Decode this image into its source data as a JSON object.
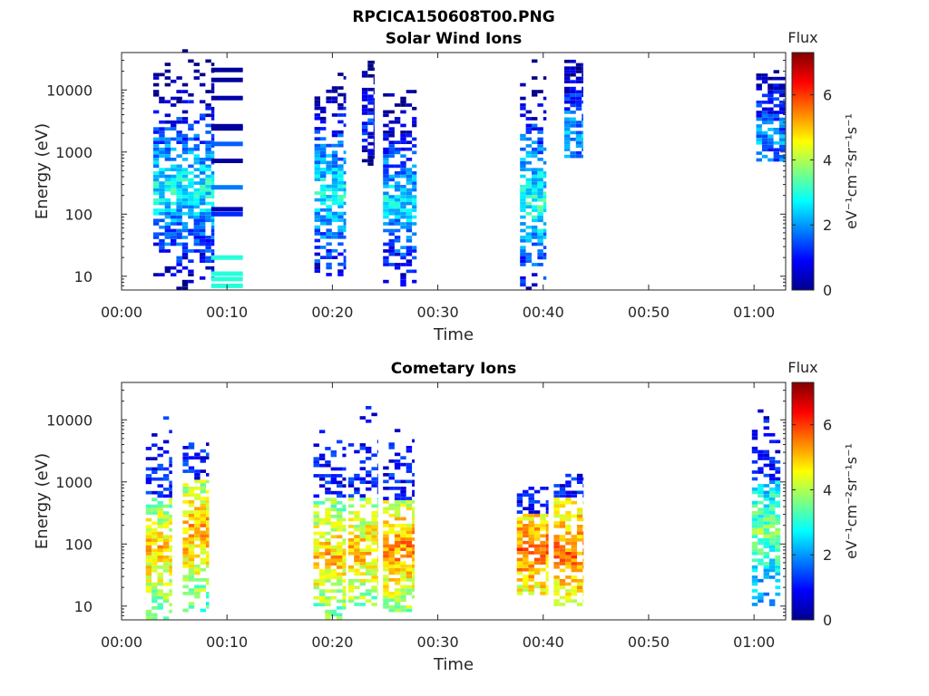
{
  "figure_title": "RPCICA150608T00.PNG",
  "chart_data": [
    {
      "type": "heatmap",
      "title": "Solar Wind Ions",
      "xlabel": "Time",
      "ylabel": "Energy (eV)",
      "xlim_minutes": [
        0,
        63
      ],
      "ylim": [
        6,
        40000
      ],
      "yscale": "log",
      "x_tick_minutes": [
        0,
        10,
        20,
        30,
        40,
        50,
        60
      ],
      "x_tick_labels": [
        "00:00",
        "00:10",
        "00:20",
        "00:30",
        "00:40",
        "00:50",
        "01:00"
      ],
      "y_tick_values": [
        10,
        100,
        1000,
        10000
      ],
      "y_tick_labels": [
        "10",
        "100",
        "1000",
        "10000"
      ],
      "colorbar": {
        "title": "Flux",
        "label": "eV⁻¹cm⁻²sr⁻¹s⁻¹",
        "range": [
          0,
          7.3
        ],
        "ticks": [
          0,
          2,
          4,
          6
        ],
        "tick_labels": [
          "0",
          "2",
          "4",
          "6"
        ],
        "colormap": "jet"
      },
      "bursts": [
        {
          "t_start": 3.0,
          "t_end": 8.8,
          "e_low": 6,
          "e_high": 40000,
          "core_energy": 250,
          "core_flux": 2.8,
          "peak_energy": 10000
        },
        {
          "t_start": 18.3,
          "t_end": 21.3,
          "e_low": 10,
          "e_high": 30000,
          "core_energy": 200,
          "core_flux": 2.8,
          "peak_energy": 5000
        },
        {
          "t_start": 22.8,
          "t_end": 24.0,
          "e_low": 600,
          "e_high": 30000,
          "core_energy": 3000,
          "core_flux": 1.2,
          "peak_energy": 5000
        },
        {
          "t_start": 24.8,
          "t_end": 28.0,
          "e_low": 6,
          "e_high": 9000,
          "core_energy": 150,
          "core_flux": 2.6,
          "peak_energy": 1000
        },
        {
          "t_start": 37.8,
          "t_end": 40.3,
          "e_low": 6,
          "e_high": 40000,
          "core_energy": 150,
          "core_flux": 3.0,
          "peak_energy": 3000
        },
        {
          "t_start": 42.0,
          "t_end": 43.8,
          "e_low": 800,
          "e_high": 30000,
          "core_energy": 1500,
          "core_flux": 2.2,
          "peak_energy": 8000
        },
        {
          "t_start": 60.2,
          "t_end": 63.0,
          "e_low": 700,
          "e_high": 20000,
          "core_energy": 1500,
          "core_flux": 2.0,
          "peak_energy": 8000
        }
      ],
      "bands": [
        {
          "t_start": 8.5,
          "t_end": 11.5,
          "energy": 21000,
          "flux": 0.2
        },
        {
          "t_start": 8.5,
          "t_end": 11.5,
          "energy": 14500,
          "flux": 0.2
        },
        {
          "t_start": 8.5,
          "t_end": 11.5,
          "energy": 7400,
          "flux": 0.3
        },
        {
          "t_start": 8.5,
          "t_end": 11.5,
          "energy": 2600,
          "flux": 0.2
        },
        {
          "t_start": 8.5,
          "t_end": 11.5,
          "energy": 2400,
          "flux": 0.2
        },
        {
          "t_start": 8.5,
          "t_end": 11.5,
          "energy": 1350,
          "flux": 1.6
        },
        {
          "t_start": 8.5,
          "t_end": 11.5,
          "energy": 720,
          "flux": 0.2
        },
        {
          "t_start": 8.5,
          "t_end": 11.5,
          "energy": 270,
          "flux": 1.8
        },
        {
          "t_start": 8.5,
          "t_end": 11.5,
          "energy": 120,
          "flux": 0.4
        },
        {
          "t_start": 8.5,
          "t_end": 11.5,
          "energy": 100,
          "flux": 1.2
        },
        {
          "t_start": 8.5,
          "t_end": 11.5,
          "energy": 20,
          "flux": 3.0
        },
        {
          "t_start": 8.5,
          "t_end": 11.5,
          "energy": 11,
          "flux": 3.0
        },
        {
          "t_start": 8.5,
          "t_end": 11.5,
          "energy": 9,
          "flux": 3.0
        },
        {
          "t_start": 8.5,
          "t_end": 11.5,
          "energy": 7,
          "flux": 3.0
        }
      ]
    },
    {
      "type": "heatmap",
      "title": "Cometary Ions",
      "xlabel": "Time",
      "ylabel": "Energy (eV)",
      "xlim_minutes": [
        0,
        63
      ],
      "ylim": [
        6,
        40000
      ],
      "yscale": "log",
      "x_tick_minutes": [
        0,
        10,
        20,
        30,
        40,
        50,
        60
      ],
      "x_tick_labels": [
        "00:00",
        "00:10",
        "00:20",
        "00:30",
        "00:40",
        "00:50",
        "01:00"
      ],
      "y_tick_values": [
        10,
        100,
        1000,
        10000
      ],
      "y_tick_labels": [
        "10",
        "100",
        "1000",
        "10000"
      ],
      "colorbar": {
        "title": "Flux",
        "label": "eV⁻¹cm⁻²sr⁻¹s⁻¹",
        "range": [
          0,
          7.3
        ],
        "ticks": [
          0,
          2,
          4,
          6
        ],
        "tick_labels": [
          "0",
          "2",
          "4",
          "6"
        ],
        "colormap": "jet"
      },
      "bursts": [
        {
          "t_start": 2.3,
          "t_end": 4.8,
          "e_low": 6,
          "e_high": 15000,
          "core_energy": 70,
          "core_flux": 5.0,
          "peak_energy": 500
        },
        {
          "t_start": 5.8,
          "t_end": 8.3,
          "e_low": 8,
          "e_high": 4000,
          "core_energy": 150,
          "core_flux": 5.2,
          "peak_energy": 1000
        },
        {
          "t_start": 18.2,
          "t_end": 21.3,
          "e_low": 6,
          "e_high": 8000,
          "core_energy": 60,
          "core_flux": 5.0,
          "peak_energy": 500
        },
        {
          "t_start": 21.5,
          "t_end": 24.3,
          "e_low": 10,
          "e_high": 20000,
          "core_energy": 70,
          "core_flux": 5.0,
          "peak_energy": 500
        },
        {
          "t_start": 24.8,
          "t_end": 27.8,
          "e_low": 8,
          "e_high": 7000,
          "core_energy": 80,
          "core_flux": 5.4,
          "peak_energy": 500
        },
        {
          "t_start": 37.5,
          "t_end": 40.5,
          "e_low": 15,
          "e_high": 800,
          "core_energy": 80,
          "core_flux": 5.6,
          "peak_energy": 300
        },
        {
          "t_start": 41.0,
          "t_end": 43.8,
          "e_low": 10,
          "e_high": 1200,
          "core_energy": 70,
          "core_flux": 5.6,
          "peak_energy": 500
        },
        {
          "t_start": 59.8,
          "t_end": 62.5,
          "e_low": 10,
          "e_high": 20000,
          "core_energy": 150,
          "core_flux": 3.6,
          "peak_energy": 1000
        }
      ],
      "bands": []
    }
  ]
}
